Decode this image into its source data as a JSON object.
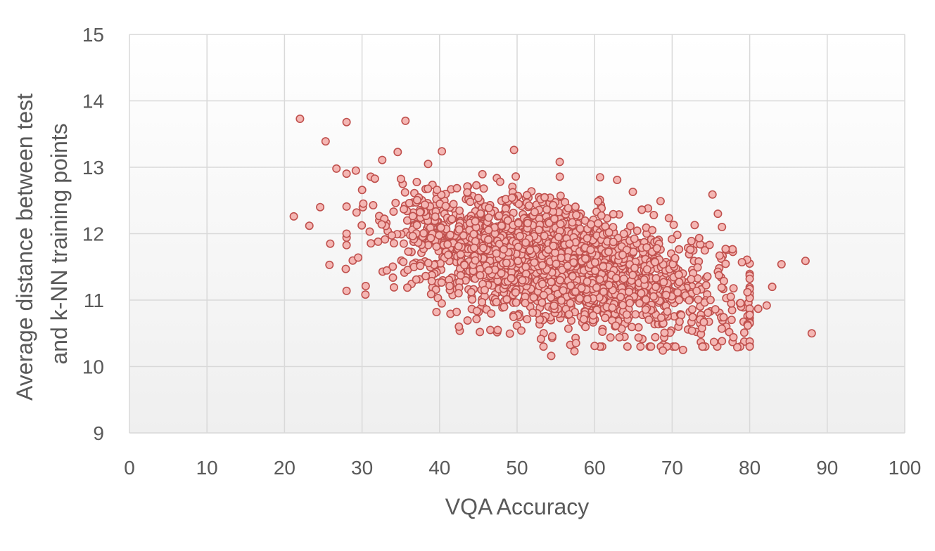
{
  "chart_data": {
    "type": "scatter",
    "title": "",
    "xlabel": "VQA Accuracy",
    "ylabel_lines": [
      "Average distance between test",
      "and k-NN training points"
    ],
    "xlim": [
      0,
      100
    ],
    "ylim": [
      9,
      15
    ],
    "x_ticks": [
      0,
      10,
      20,
      30,
      40,
      50,
      60,
      70,
      80,
      90,
      100
    ],
    "y_ticks": [
      9,
      10,
      11,
      12,
      13,
      14,
      15
    ],
    "grid": true,
    "legend": "none",
    "colors": {
      "marker_fill": "#f4b6b3",
      "marker_stroke": "#c0504d",
      "grid": "#d9d9d9",
      "plot_bg_top": "#ffffff",
      "plot_bg_bottom": "#f0f0f0"
    },
    "outlier_points": [
      [
        22.0,
        13.73
      ],
      [
        28.0,
        13.68
      ],
      [
        35.6,
        13.7
      ],
      [
        25.3,
        13.39
      ],
      [
        21.2,
        12.26
      ],
      [
        23.2,
        12.12
      ],
      [
        24.6,
        12.4
      ],
      [
        25.9,
        11.85
      ],
      [
        25.8,
        11.53
      ],
      [
        27.9,
        11.47
      ],
      [
        29.5,
        11.64
      ],
      [
        40.3,
        13.24
      ],
      [
        49.6,
        13.26
      ],
      [
        55.5,
        13.08
      ],
      [
        60.7,
        12.85
      ],
      [
        62.9,
        12.81
      ],
      [
        75.2,
        12.59
      ],
      [
        75.9,
        12.3
      ],
      [
        76.9,
        11.77
      ],
      [
        84.1,
        11.54
      ],
      [
        87.2,
        11.59
      ],
      [
        88.0,
        10.5
      ],
      [
        82.2,
        10.92
      ],
      [
        82.9,
        11.2
      ],
      [
        81.1,
        10.87
      ],
      [
        79.3,
        10.51
      ],
      [
        78.4,
        10.29
      ],
      [
        77.9,
        10.44
      ],
      [
        71.4,
        10.25
      ],
      [
        68.8,
        10.24
      ],
      [
        57.4,
        10.23
      ],
      [
        54.4,
        10.16
      ],
      [
        60.0,
        10.31
      ],
      [
        42.5,
        10.6
      ],
      [
        45.2,
        10.52
      ],
      [
        39.6,
        10.82
      ],
      [
        32.6,
        13.11
      ],
      [
        34.6,
        13.23
      ],
      [
        26.7,
        12.98
      ],
      [
        29.2,
        12.95
      ],
      [
        66.1,
        12.36
      ],
      [
        68.5,
        12.49
      ],
      [
        72.9,
        12.13
      ],
      [
        79.0,
        11.57
      ],
      [
        75.4,
        10.37
      ],
      [
        76.4,
        10.57
      ],
      [
        47.5,
        10.55
      ],
      [
        63.2,
        10.44
      ]
    ],
    "cluster": {
      "count": 2200,
      "seed": 7,
      "x_mean": 55,
      "x_sd": 10.5,
      "y_intercept": 12.85,
      "y_slope_per_x": -0.0235,
      "y_sd": 0.43,
      "x_range": [
        28,
        80
      ],
      "y_range": [
        10.3,
        13.05
      ]
    }
  }
}
